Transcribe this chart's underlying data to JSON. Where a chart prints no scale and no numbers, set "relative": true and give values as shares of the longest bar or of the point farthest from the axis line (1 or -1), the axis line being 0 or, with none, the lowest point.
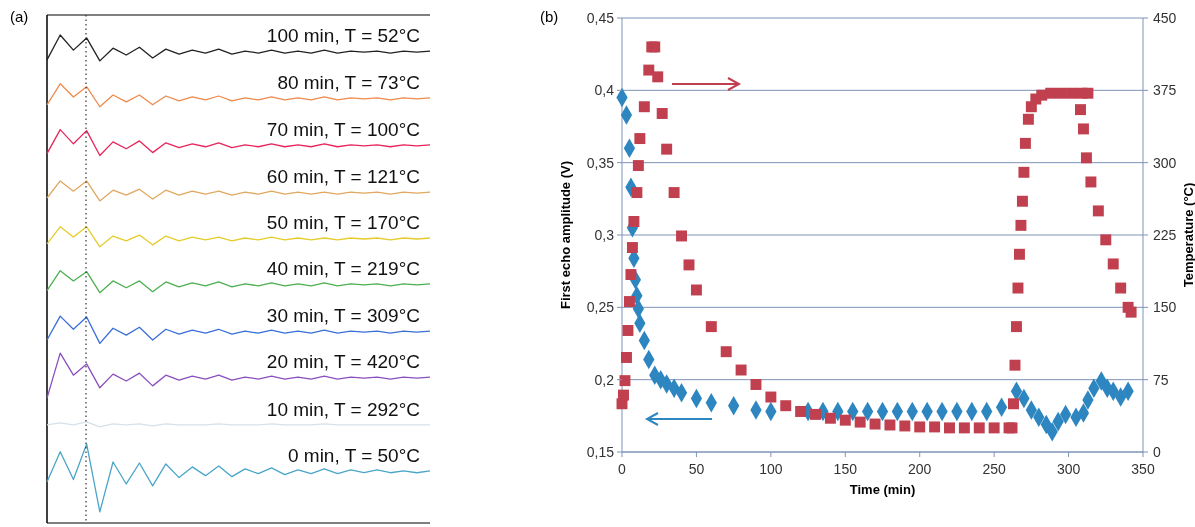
{
  "chart_data": [
    {
      "type": "line",
      "title": "(a)",
      "relative": true,
      "categories": [
        null,
        null,
        null,
        null,
        null,
        null,
        null,
        null,
        null,
        null,
        null,
        null,
        null,
        null,
        null,
        null,
        null,
        null,
        null,
        null,
        null,
        null,
        null,
        null,
        null,
        null,
        null,
        null,
        null,
        null
      ],
      "series": [
        {
          "name": "100 min, T = 52°C",
          "color": "#222222",
          "values": [
            0.949,
            1,
            0.969,
            0.994,
            0.947,
            0.973,
            0.959,
            0.975,
            0.953,
            0.971,
            0.961,
            0.969,
            0.963,
            0.971,
            0.961,
            0.967,
            0.963,
            0.969,
            0.963,
            0.967,
            0.963,
            0.969,
            0.963,
            0.967,
            0.965,
            0.967,
            0.963,
            0.967,
            0.965,
            0.967
          ]
        },
        {
          "name": "80 min, T = 73°C",
          "color": "#f08a4b",
          "values": [
            0.857,
            0.9,
            0.873,
            0.894,
            0.853,
            0.877,
            0.863,
            0.877,
            0.857,
            0.875,
            0.865,
            0.873,
            0.867,
            0.875,
            0.865,
            0.871,
            0.867,
            0.873,
            0.867,
            0.871,
            0.867,
            0.873,
            0.867,
            0.871,
            0.869,
            0.871,
            0.867,
            0.871,
            0.869,
            0.871
          ]
        },
        {
          "name": "70 min, T = 100°C",
          "color": "#e8245a",
          "values": [
            0.757,
            0.806,
            0.777,
            0.804,
            0.753,
            0.781,
            0.767,
            0.783,
            0.759,
            0.779,
            0.769,
            0.777,
            0.771,
            0.779,
            0.769,
            0.775,
            0.771,
            0.777,
            0.771,
            0.775,
            0.771,
            0.777,
            0.771,
            0.775,
            0.773,
            0.775,
            0.771,
            0.775,
            0.773,
            0.775
          ]
        },
        {
          "name": "60 min, T = 121°C",
          "color": "#e0a860",
          "values": [
            0.666,
            0.701,
            0.68,
            0.701,
            0.66,
            0.682,
            0.672,
            0.684,
            0.664,
            0.682,
            0.672,
            0.68,
            0.674,
            0.68,
            0.672,
            0.678,
            0.674,
            0.68,
            0.674,
            0.678,
            0.674,
            0.678,
            0.674,
            0.678,
            0.676,
            0.678,
            0.674,
            0.678,
            0.676,
            0.678
          ]
        },
        {
          "name": "50 min, T = 170°C",
          "color": "#e6cc2a",
          "values": [
            0.572,
            0.607,
            0.586,
            0.607,
            0.566,
            0.588,
            0.578,
            0.59,
            0.57,
            0.588,
            0.578,
            0.586,
            0.58,
            0.586,
            0.578,
            0.584,
            0.58,
            0.586,
            0.58,
            0.584,
            0.58,
            0.584,
            0.58,
            0.584,
            0.582,
            0.584,
            0.58,
            0.584,
            0.582,
            0.584
          ]
        },
        {
          "name": "40 min, T = 219°C",
          "color": "#4caf50",
          "values": [
            0.476,
            0.517,
            0.496,
            0.515,
            0.472,
            0.496,
            0.482,
            0.496,
            0.474,
            0.494,
            0.484,
            0.492,
            0.486,
            0.494,
            0.484,
            0.49,
            0.486,
            0.492,
            0.486,
            0.49,
            0.486,
            0.492,
            0.486,
            0.49,
            0.488,
            0.49,
            0.486,
            0.49,
            0.488,
            0.49
          ]
        },
        {
          "name": "30 min, T = 309°C",
          "color": "#3a6fd8",
          "values": [
            0.375,
            0.424,
            0.397,
            0.422,
            0.368,
            0.399,
            0.385,
            0.401,
            0.375,
            0.397,
            0.387,
            0.395,
            0.389,
            0.397,
            0.387,
            0.393,
            0.389,
            0.395,
            0.389,
            0.393,
            0.389,
            0.395,
            0.389,
            0.393,
            0.391,
            0.393,
            0.389,
            0.393,
            0.391,
            0.393
          ]
        },
        {
          "name": "20 min, T = 420°C",
          "color": "#8a4fbf",
          "values": [
            0.256,
            0.348,
            0.303,
            0.326,
            0.277,
            0.305,
            0.291,
            0.307,
            0.281,
            0.303,
            0.293,
            0.301,
            0.295,
            0.303,
            0.293,
            0.299,
            0.295,
            0.301,
            0.295,
            0.299,
            0.295,
            0.301,
            0.295,
            0.299,
            0.297,
            0.299,
            0.295,
            0.299,
            0.297,
            0.299
          ]
        },
        {
          "name": "10 min, T = 292°C",
          "color": "#d5e2ea",
          "values": [
            0.201,
            0.205,
            0.201,
            0.207,
            0.197,
            0.203,
            0.201,
            0.203,
            0.199,
            0.203,
            0.201,
            0.201,
            0.201,
            0.203,
            0.201,
            0.201,
            0.201,
            0.203,
            0.201,
            0.201,
            0.201,
            0.203,
            0.201,
            0.201,
            0.201,
            0.201,
            0.201,
            0.201,
            0.201,
            0.201
          ]
        },
        {
          "name": "0 min, T = 50°C",
          "color": "#4aa6c8",
          "values": [
            0.084,
            0.146,
            0.089,
            0.162,
            0.023,
            0.125,
            0.08,
            0.123,
            0.076,
            0.121,
            0.093,
            0.115,
            0.097,
            0.117,
            0.095,
            0.111,
            0.101,
            0.113,
            0.099,
            0.109,
            0.101,
            0.111,
            0.101,
            0.109,
            0.103,
            0.109,
            0.103,
            0.107,
            0.103,
            0.107
          ]
        }
      ]
    },
    {
      "type": "scatter",
      "title": "(b)",
      "xlabel": "Time (min)",
      "ylabel": "First echo amplitude (V)",
      "y2label": "Temperature (°C)",
      "grid": "y",
      "xlim": [
        0,
        350
      ],
      "xticks": [
        0,
        50,
        100,
        150,
        200,
        250,
        300,
        350
      ],
      "ylim": [
        0.15,
        0.45
      ],
      "yticks": [
        {
          "value": 0.15,
          "label": "0,15"
        },
        {
          "value": 0.2,
          "label": "0,2"
        },
        {
          "value": 0.25,
          "label": "0,25"
        },
        {
          "value": 0.3,
          "label": "0,3"
        },
        {
          "value": 0.35,
          "label": "0,35"
        },
        {
          "value": 0.4,
          "label": "0,4"
        },
        {
          "value": 0.45,
          "label": "0,45"
        }
      ],
      "y2lim": [
        0,
        450
      ],
      "y2ticks": [
        0,
        75,
        150,
        225,
        300,
        375,
        450
      ],
      "series": [
        {
          "color": "#2e86c1",
          "marker": "diamond",
          "x": [
            0,
            3,
            5,
            6,
            7,
            8,
            9,
            10,
            11,
            12,
            15,
            18,
            22,
            26,
            30,
            35,
            40,
            50,
            60,
            75,
            90,
            100,
            125,
            135,
            145,
            155,
            165,
            175,
            185,
            195,
            205,
            215,
            225,
            235,
            245,
            255,
            265,
            270,
            275,
            280,
            285,
            289,
            293,
            298,
            305,
            310,
            313,
            317,
            322,
            326,
            330,
            335,
            340
          ],
          "values": [
            0.395,
            0.383,
            0.36,
            0.333,
            0.305,
            0.284,
            0.269,
            0.258,
            0.249,
            0.239,
            0.227,
            0.214,
            0.203,
            0.2,
            0.197,
            0.194,
            0.191,
            0.187,
            0.184,
            0.182,
            0.179,
            0.178,
            0.178,
            0.178,
            0.178,
            0.178,
            0.178,
            0.178,
            0.178,
            0.178,
            0.178,
            0.178,
            0.178,
            0.178,
            0.178,
            0.181,
            0.192,
            0.187,
            0.179,
            0.174,
            0.169,
            0.164,
            0.171,
            0.176,
            0.174,
            0.177,
            0.186,
            0.194,
            0.199,
            0.194,
            0.192,
            0.188,
            0.192
          ]
        },
        {
          "color": "#c0404f",
          "marker": "square",
          "axis": "y2",
          "x": [
            0,
            1,
            2,
            3,
            4,
            5,
            6,
            7,
            8,
            10,
            11,
            12,
            15,
            18,
            20,
            22,
            24,
            27,
            30,
            35,
            40,
            45,
            50,
            60,
            70,
            80,
            90,
            100,
            110,
            120,
            130,
            140,
            150,
            160,
            170,
            180,
            190,
            200,
            210,
            220,
            230,
            240,
            250,
            260,
            262,
            263,
            264,
            265,
            266,
            267,
            268,
            269,
            270,
            271,
            273,
            275,
            278,
            282,
            288,
            295,
            302,
            309,
            313,
            308,
            310,
            312,
            315,
            320,
            325,
            330,
            335,
            340,
            342
          ],
          "values": [
            50,
            59,
            74,
            98,
            126,
            156,
            184,
            212,
            239,
            269,
            297,
            325,
            358,
            396,
            420,
            420,
            389,
            351,
            314,
            269,
            224,
            194,
            168,
            130,
            104,
            85,
            70,
            57,
            48,
            42,
            39,
            35,
            33,
            31,
            29,
            28,
            27,
            26,
            26,
            25,
            25,
            25,
            25,
            25,
            25,
            50,
            90,
            130,
            170,
            205,
            235,
            260,
            290,
            320,
            345,
            358,
            366,
            370,
            372,
            372,
            372,
            372,
            372,
            355,
            335,
            305,
            280,
            250,
            220,
            195,
            170,
            150,
            145
          ]
        }
      ]
    }
  ]
}
